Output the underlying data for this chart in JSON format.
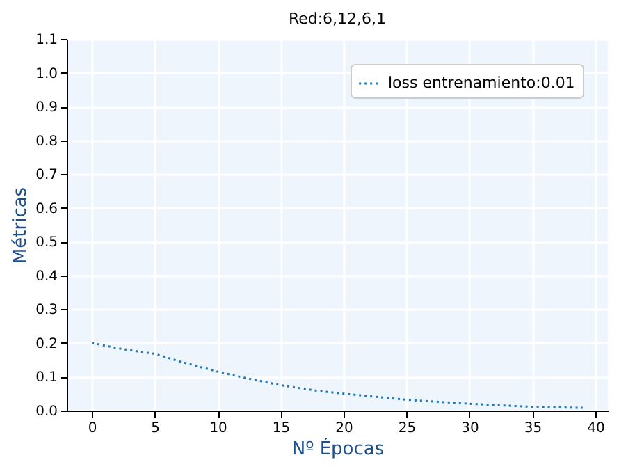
{
  "chart_data": {
    "type": "line",
    "title": "Red:6,12,6,1",
    "xlabel": "Nº Épocas",
    "ylabel": "Métricas",
    "x": [
      0,
      2,
      4,
      5,
      7,
      10,
      12,
      15,
      18,
      20,
      25,
      30,
      35,
      39
    ],
    "series": [
      {
        "name": "loss entrenamiento:0.01",
        "color": "#1f77b4",
        "values": [
          0.2,
          0.185,
          0.173,
          0.168,
          0.145,
          0.115,
          0.098,
          0.075,
          0.058,
          0.05,
          0.032,
          0.02,
          0.011,
          0.008
        ]
      }
    ],
    "xlim": [
      -2,
      41
    ],
    "xticks": [
      0,
      5,
      10,
      15,
      20,
      25,
      30,
      35,
      40
    ],
    "ylim": [
      0,
      1.1
    ],
    "yticks": [
      {
        "value": 0,
        "label": "0.0"
      },
      0.1,
      0.2,
      0.3,
      0.4,
      0.5,
      0.6,
      0.7,
      0.8,
      0.9,
      {
        "value": 1,
        "label": "1.0"
      },
      1.1
    ],
    "grid": true,
    "legend": "top right",
    "line_style": "dotted",
    "marker": "none"
  }
}
